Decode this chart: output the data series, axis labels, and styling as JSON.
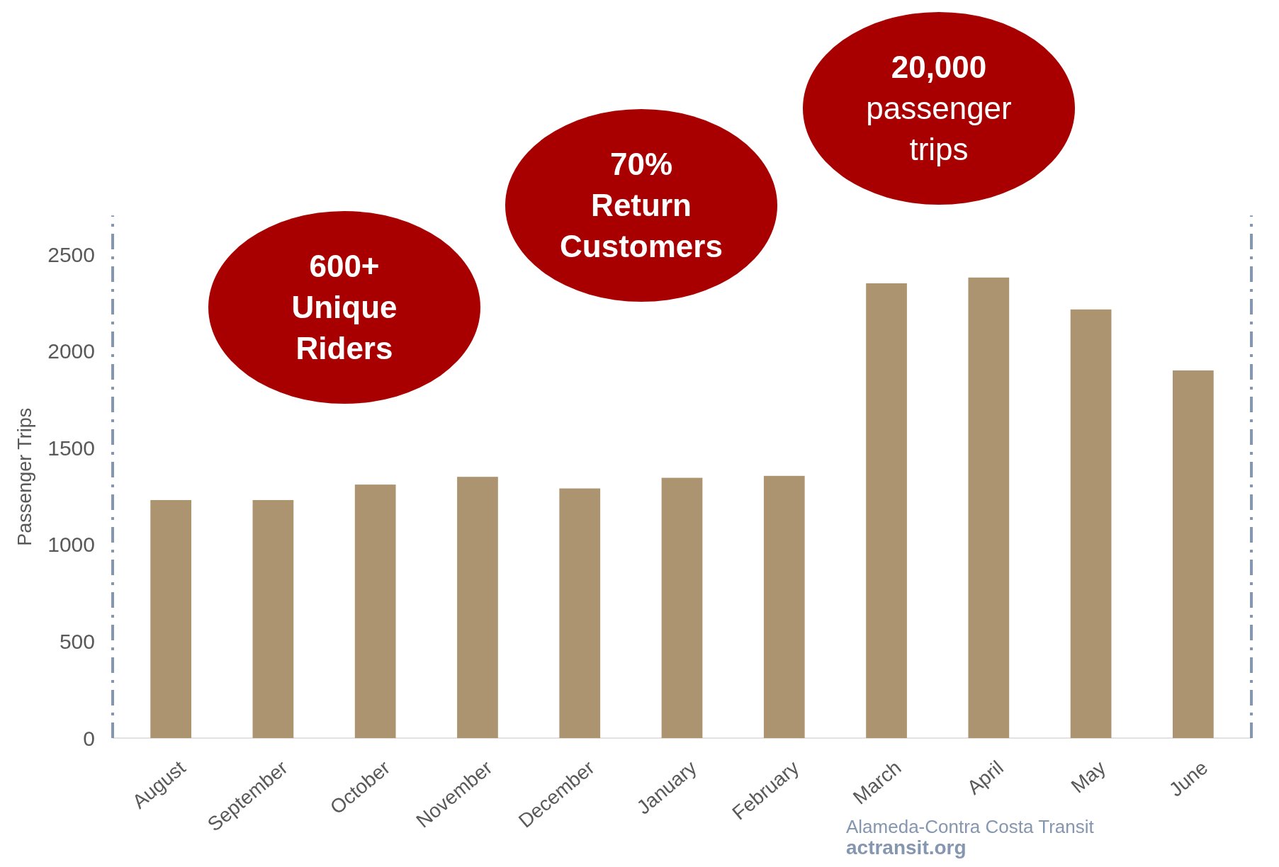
{
  "chart_data": {
    "type": "bar",
    "ylabel": "Passenger Trips",
    "categories": [
      "August",
      "September",
      "October",
      "November",
      "December",
      "January",
      "February",
      "March",
      "April",
      "May",
      "June"
    ],
    "values": [
      1230,
      1230,
      1310,
      1350,
      1290,
      1345,
      1355,
      2350,
      2380,
      2215,
      1900
    ],
    "color": "#ad9470",
    "ylim": [
      0,
      2700
    ],
    "yticks": [
      0,
      500,
      1000,
      1500,
      2000,
      2500
    ],
    "grid": false,
    "annotations": [
      "600+\nUnique\nRiders",
      "70%\nReturn\nCustomers",
      "20,000\npassenger\ntrips",
      "Alameda-Contra Costa Transit",
      "actransit.org"
    ]
  }
}
